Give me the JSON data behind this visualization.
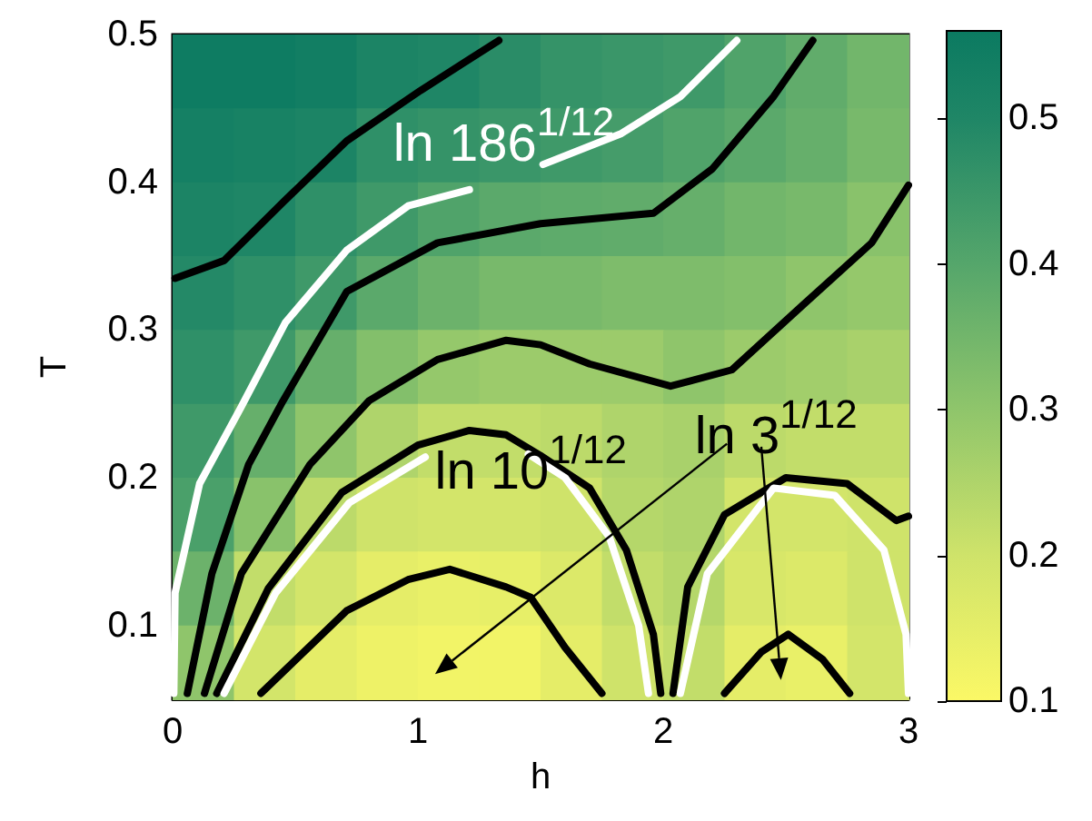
{
  "chart_data": {
    "type": "heatmap",
    "xlabel": "h",
    "ylabel": "T",
    "x": [
      0.125,
      0.375,
      0.625,
      0.875,
      1.125,
      1.375,
      1.625,
      1.875,
      2.125,
      2.375,
      2.625,
      2.875
    ],
    "xlim": [
      0,
      3
    ],
    "ylim": [
      0.05,
      0.5
    ],
    "xticks": [
      0,
      1,
      2,
      3
    ],
    "yticks": [
      0.1,
      0.2,
      0.3,
      0.4,
      0.5
    ],
    "cells": [
      [
        0.55,
        0.55,
        0.54,
        0.51,
        0.5,
        0.48,
        0.46,
        0.45,
        0.44,
        0.41,
        0.38,
        0.35
      ],
      [
        0.53,
        0.52,
        0.51,
        0.47,
        0.46,
        0.45,
        0.44,
        0.43,
        0.41,
        0.39,
        0.37,
        0.34
      ],
      [
        0.51,
        0.5,
        0.47,
        0.44,
        0.41,
        0.39,
        0.385,
        0.38,
        0.37,
        0.35,
        0.34,
        0.31
      ],
      [
        0.49,
        0.47,
        0.44,
        0.39,
        0.36,
        0.34,
        0.34,
        0.33,
        0.33,
        0.32,
        0.3,
        0.29
      ],
      [
        0.47,
        0.44,
        0.37,
        0.32,
        0.29,
        0.28,
        0.28,
        0.28,
        0.3,
        0.28,
        0.27,
        0.26
      ],
      [
        0.44,
        0.37,
        0.3,
        0.25,
        0.22,
        0.22,
        0.23,
        0.25,
        0.26,
        0.23,
        0.22,
        0.22
      ],
      [
        0.42,
        0.31,
        0.23,
        0.2,
        0.19,
        0.19,
        0.2,
        0.24,
        0.25,
        0.19,
        0.19,
        0.2
      ],
      [
        0.36,
        0.22,
        0.19,
        0.15,
        0.14,
        0.145,
        0.17,
        0.22,
        0.24,
        0.18,
        0.17,
        0.2
      ],
      [
        0.3,
        0.19,
        0.15,
        0.13,
        0.12,
        0.12,
        0.15,
        0.2,
        0.22,
        0.15,
        0.14,
        0.19
      ]
    ],
    "clim": [
      0.1,
      0.56
    ],
    "cticks": [
      0.1,
      0.2,
      0.3,
      0.4,
      0.5
    ],
    "series": [
      {
        "type": "line",
        "color": "#000000",
        "x": [
          0.01,
          0.21,
          0.46,
          0.71,
          1.01,
          1.33
        ],
        "values": [
          0.335,
          0.347,
          0.388,
          0.428,
          0.462,
          0.496
        ]
      },
      {
        "type": "line",
        "color": "#ffffff",
        "x": [
          0.005,
          0.01,
          0.11,
          0.28,
          0.46,
          0.71,
          0.96,
          1.21,
          1.36,
          1.51,
          1.83,
          2.07,
          2.3
        ],
        "values": [
          0.054,
          0.122,
          0.196,
          0.248,
          0.305,
          0.354,
          0.384,
          0.395,
          null,
          0.412,
          0.433,
          0.458,
          0.496
        ]
      },
      {
        "type": "line",
        "color": "#000000",
        "x": [
          0.06,
          0.16,
          0.31,
          0.45,
          0.71,
          1.08,
          1.5,
          1.96,
          2.2,
          2.45,
          2.61
        ],
        "values": [
          0.054,
          0.135,
          0.209,
          0.252,
          0.326,
          0.359,
          0.372,
          0.379,
          0.409,
          0.458,
          0.496
        ]
      },
      {
        "type": "line",
        "color": "#000000",
        "x": [
          0.13,
          0.28,
          0.56,
          0.8,
          1.08,
          1.36,
          1.5,
          1.7,
          2.03,
          2.28,
          2.57,
          2.85,
          3.0
        ],
        "values": [
          0.054,
          0.135,
          0.209,
          0.252,
          0.28,
          0.293,
          0.29,
          0.277,
          0.262,
          0.273,
          0.317,
          0.359,
          0.398
        ]
      },
      {
        "type": "line",
        "color": "#000000",
        "x": [
          0.18,
          0.39,
          0.69,
          1.0,
          1.21,
          1.36,
          1.5,
          1.7,
          1.85,
          1.96,
          1.99
        ],
        "values": [
          0.054,
          0.125,
          0.19,
          0.222,
          0.232,
          0.229,
          0.215,
          0.193,
          0.151,
          0.094,
          0.054
        ]
      },
      {
        "type": "line",
        "color": "#ffffff",
        "x": [
          0.21,
          0.42,
          0.72,
          1.03,
          1.2,
          1.45,
          1.6,
          1.78,
          1.9,
          1.94
        ],
        "values": [
          0.054,
          0.122,
          0.183,
          0.214,
          null,
          0.216,
          0.2,
          0.16,
          0.1,
          0.054
        ]
      },
      {
        "type": "line",
        "color": "#000000",
        "x": [
          2.04,
          2.1,
          2.25,
          2.5,
          2.75,
          2.87,
          2.95,
          3.0
        ],
        "values": [
          0.054,
          0.126,
          0.175,
          0.2,
          0.196,
          0.181,
          0.171,
          0.174
        ]
      },
      {
        "type": "line",
        "color": "#ffffff",
        "x": [
          2.07,
          2.18,
          2.45,
          2.7,
          2.9,
          2.99,
          3.0
        ],
        "values": [
          0.054,
          0.135,
          0.193,
          0.188,
          0.151,
          0.094,
          0.054
        ]
      },
      {
        "type": "line",
        "color": "#000000",
        "x": [
          0.36,
          0.71,
          0.96,
          1.13,
          1.36,
          1.46,
          1.6,
          1.75
        ],
        "values": [
          0.054,
          0.11,
          0.131,
          0.138,
          0.126,
          0.119,
          0.085,
          0.054
        ]
      },
      {
        "type": "line",
        "color": "#000000",
        "x": [
          2.25,
          2.4,
          2.51,
          2.65,
          2.76
        ],
        "values": [
          0.054,
          0.082,
          0.094,
          0.077,
          0.054
        ]
      }
    ],
    "annotations": [
      "ln 186$^{1/12}$",
      {
        "text": "ln 10$^{1/12}$",
        "x": 1.46,
        "y": 0.209
      },
      "ln 3$^{1/12}$"
    ]
  }
}
